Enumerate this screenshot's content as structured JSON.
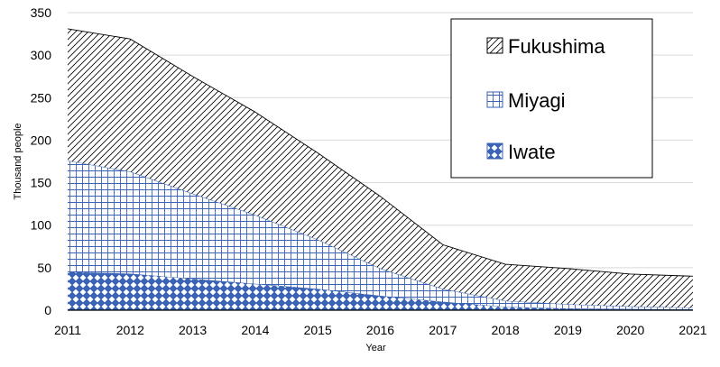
{
  "chart_data": {
    "type": "area",
    "stacked": true,
    "x": [
      2011,
      2012,
      2013,
      2014,
      2015,
      2016,
      2017,
      2018,
      2019,
      2020,
      2021
    ],
    "series": [
      {
        "name": "Iwate",
        "values": [
          45,
          43,
          37,
          31,
          25,
          17,
          10,
          4,
          2,
          1.5,
          1
        ],
        "pattern": "diamond-checker",
        "color": "#3a63b5"
      },
      {
        "name": "Miyagi",
        "values": [
          131,
          120,
          100,
          81,
          58,
          32,
          15,
          7,
          5,
          3,
          2
        ],
        "pattern": "grid",
        "color": "#3a63b5"
      },
      {
        "name": "Fukushima",
        "values": [
          155,
          156,
          138,
          121,
          102,
          85,
          52,
          43,
          42,
          38,
          37
        ],
        "pattern": "diagonal-hatch",
        "color": "#000000"
      }
    ],
    "xlabel": "Year",
    "ylabel": "Thousand people",
    "ylim": [
      0,
      350
    ],
    "yticks": [
      0,
      50,
      100,
      150,
      200,
      250,
      300,
      350
    ],
    "xticks": [
      "2011",
      "2012",
      "2013",
      "2014",
      "2015",
      "2016",
      "2017",
      "2018",
      "2019",
      "2020",
      "2021"
    ],
    "grid": "horizontal",
    "legend_position": "top-right",
    "legend_order": [
      "Fukushima",
      "Miyagi",
      "Iwate"
    ]
  }
}
